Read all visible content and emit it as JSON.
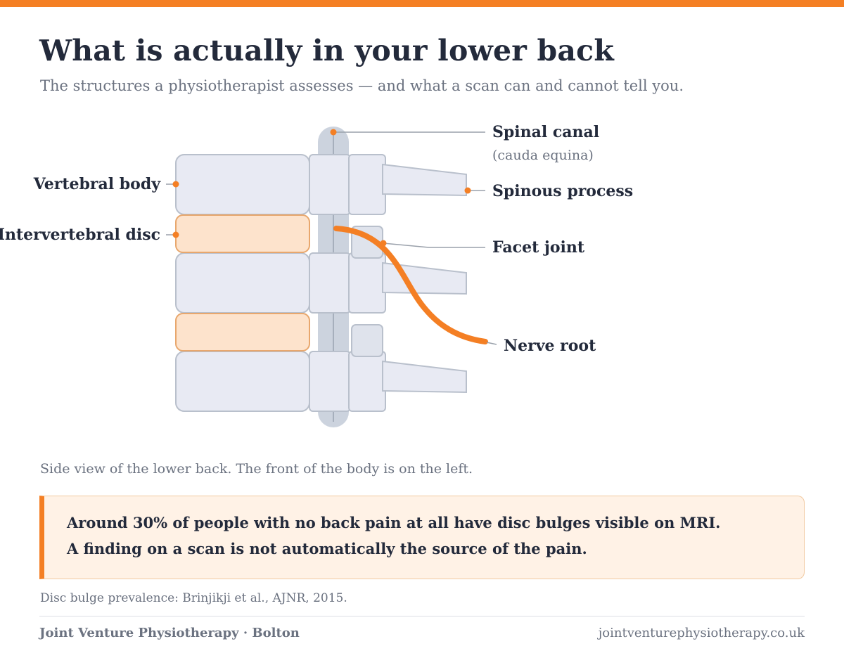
{
  "header": {
    "title": "What is actually in your lower back",
    "subtitle": "The structures a physiotherapist assesses — and what a scan can and cannot tell you."
  },
  "diagram": {
    "labels": {
      "vertebral_body": "Vertebral body",
      "intervertebral_disc": "Intervertebral disc",
      "spinal_canal": "Spinal canal",
      "spinal_canal_sub": "(cauda equina)",
      "spinous_process": "Spinous process",
      "facet_joint": "Facet joint",
      "nerve_root": "Nerve root"
    },
    "colors": {
      "bone_fill": "#e8eaf3",
      "bone_stroke": "#b9c0cc",
      "disc_fill": "#fde3cc",
      "disc_stroke": "#e8a76d",
      "canal_fill": "#ccd3de",
      "accent": "#f47f24",
      "leader": "#9aa1ab"
    },
    "caption": "Side view of the lower back. The front of the body is on the left."
  },
  "callout": {
    "line1": "Around 30% of people with no back pain at all have disc bulges visible on MRI.",
    "line2": "A finding on a scan is not automatically the source of the pain."
  },
  "source": "Disc bulge prevalence: Brinjikji et al., AJNR, 2015.",
  "footer": {
    "left": "Joint Venture Physiotherapy · Bolton",
    "right": "jointventurephysiotherapy.co.uk"
  }
}
